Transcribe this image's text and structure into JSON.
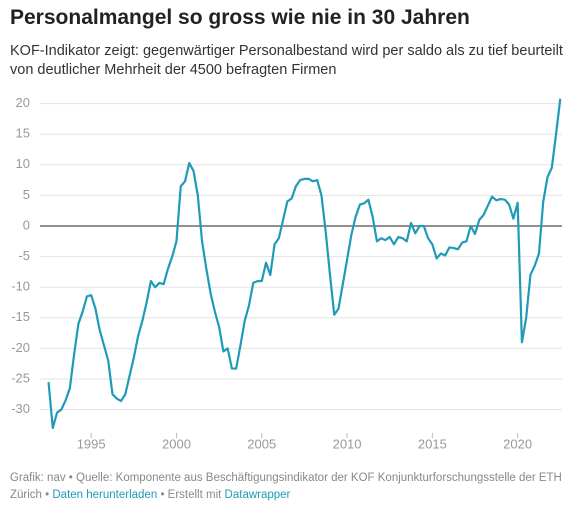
{
  "chart_data": {
    "type": "line",
    "title": "Personalmangel so gross wie nie in 30 Jahren",
    "subtitle": "KOF-Indikator zeigt: gegenwärtiger Personalbestand wird per saldo als zu tief beurteilt von deutlicher Mehrheit der 4500 befragten Firmen",
    "footer": {
      "text": "Grafik: nav • Quelle: Komponente aus Beschäftigungsindikator der KOF Konjunkturforschungsstelle der ETH Zürich •",
      "link1": "Daten herunterladen",
      "middle": "• Erstellt mit",
      "link2": "Datawrapper"
    },
    "x": [
      1992.5,
      1992.75,
      1993,
      1993.25,
      1993.5,
      1993.75,
      1994,
      1994.25,
      1994.5,
      1994.75,
      1995,
      1995.25,
      1995.5,
      1995.75,
      1996,
      1996.25,
      1996.5,
      1996.75,
      1997,
      1997.25,
      1997.5,
      1997.75,
      1998,
      1998.25,
      1998.5,
      1998.75,
      1999,
      1999.25,
      1999.5,
      1999.75,
      2000,
      2000.25,
      2000.5,
      2000.75,
      2001,
      2001.25,
      2001.5,
      2001.75,
      2002,
      2002.25,
      2002.5,
      2002.75,
      2003,
      2003.25,
      2003.5,
      2003.75,
      2004,
      2004.25,
      2004.5,
      2004.75,
      2005,
      2005.25,
      2005.5,
      2005.75,
      2006,
      2006.25,
      2006.5,
      2006.75,
      2007,
      2007.25,
      2007.5,
      2007.75,
      2008,
      2008.25,
      2008.5,
      2008.75,
      2009,
      2009.25,
      2009.5,
      2009.75,
      2010,
      2010.25,
      2010.5,
      2010.75,
      2011,
      2011.25,
      2011.5,
      2011.75,
      2012,
      2012.25,
      2012.5,
      2012.75,
      2013,
      2013.25,
      2013.5,
      2013.75,
      2014,
      2014.25,
      2014.5,
      2014.75,
      2015,
      2015.25,
      2015.5,
      2015.75,
      2016,
      2016.25,
      2016.5,
      2016.75,
      2017,
      2017.25,
      2017.5,
      2017.75,
      2018,
      2018.25,
      2018.5,
      2018.75,
      2019,
      2019.25,
      2019.5,
      2019.75,
      2020,
      2020.25,
      2020.5,
      2020.75,
      2021,
      2021.25,
      2021.5,
      2021.75,
      2022,
      2022.25,
      2022.5
    ],
    "series": [
      {
        "name": "KOF-Indikator",
        "color": "#1f9bb8",
        "values": [
          -25.5,
          -33,
          -30.5,
          -30,
          -28.5,
          -26.5,
          -21,
          -16,
          -14,
          -11.5,
          -11.3,
          -13.5,
          -17,
          -19.5,
          -22,
          -27.5,
          -28.2,
          -28.6,
          -27.5,
          -24.5,
          -21.5,
          -18,
          -15.5,
          -12.5,
          -9,
          -10,
          -9.3,
          -9.5,
          -7,
          -5,
          -2.5,
          6.5,
          7.3,
          10.3,
          9,
          5,
          -2.5,
          -7,
          -11,
          -14,
          -16.5,
          -20.5,
          -20,
          -23.3,
          -23.3,
          -19.5,
          -15.5,
          -13,
          -9.3,
          -9,
          -9,
          -6,
          -8,
          -3,
          -2,
          1,
          4,
          4.5,
          6.5,
          7.5,
          7.7,
          7.7,
          7.3,
          7.5,
          5,
          -1,
          -8,
          -14.5,
          -13.5,
          -9.5,
          -5.5,
          -1.5,
          1.5,
          3.5,
          3.7,
          4.3,
          1.5,
          -2.5,
          -2,
          -2.3,
          -1.8,
          -3,
          -1.8,
          -2,
          -2.5,
          0.5,
          -1.2,
          0,
          0,
          -2,
          -3,
          -5.3,
          -4.5,
          -4.8,
          -3.5,
          -3.6,
          -3.8,
          -2.7,
          -2.5,
          0,
          -1.3,
          1,
          1.8,
          3.3,
          4.8,
          4.2,
          4.4,
          4.3,
          3.5,
          1.2,
          3.8,
          -19,
          -15,
          -8,
          -6.5,
          -4.5,
          4,
          8,
          9.5,
          15,
          20.8
        ]
      }
    ],
    "xlim": [
      1992,
      2022.6
    ],
    "ylim": [
      -33.5,
      21
    ],
    "xticks": [
      1995,
      2000,
      2005,
      2010,
      2015,
      2020
    ],
    "yticks": [
      -30,
      -25,
      -20,
      -15,
      -10,
      -5,
      0,
      5,
      10,
      15,
      20
    ],
    "grid": true
  }
}
